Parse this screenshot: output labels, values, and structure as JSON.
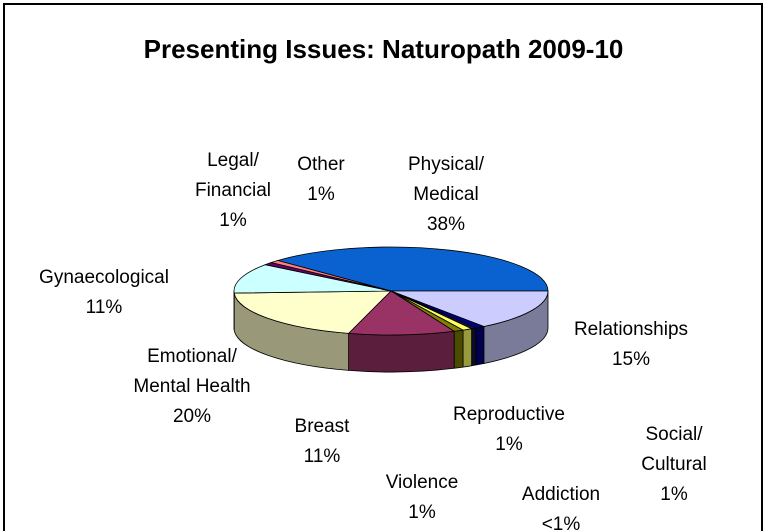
{
  "chart_data": {
    "type": "pie3d",
    "title": "Presenting Issues: Naturopath 2009-10",
    "categories": [
      "Physical/\nMedical",
      "Relationships",
      "Social/ Cultural",
      "Addiction",
      "Reproductive",
      "Violence",
      "Breast",
      "Emotional/\nMental Health",
      "Gynaecological",
      "Legal/\nFinancial",
      "Other"
    ],
    "values": [
      38,
      15,
      1,
      0.5,
      1,
      1,
      11,
      20,
      11,
      1,
      1
    ],
    "value_labels": [
      "38%",
      "15%",
      "1%",
      "<1%",
      "1%",
      "1%",
      "11%",
      "20%",
      "11%",
      "1%",
      "1%"
    ],
    "colors": [
      "#0a62d0",
      "#ccccff",
      "#000080",
      "#15154a",
      "#ffff66",
      "#7f7f00",
      "#993366",
      "#ffffcc",
      "#ccffff",
      "#660066",
      "#ff8080"
    ]
  }
}
